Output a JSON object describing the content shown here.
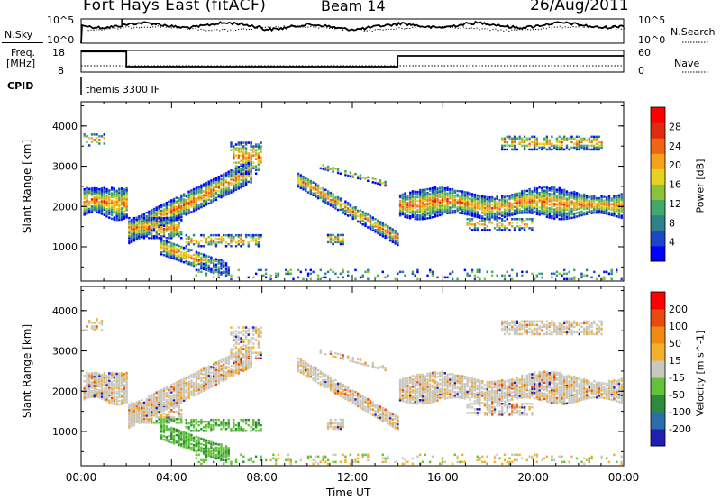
{
  "header": {
    "station": "Fort Hays East (fitACF)",
    "beam": "Beam 14",
    "date": "26/Aug/2011"
  },
  "noise_panel": {
    "left_label": "N.Sky",
    "left_ticks": [
      "10^5",
      "10^0"
    ],
    "right_ticks": [
      "10^5",
      "10^0"
    ],
    "right_label": "N.Search"
  },
  "freq_panel": {
    "left_label_line1": "Freq.",
    "left_label_line2": "[MHz]",
    "left_ticks": [
      "18",
      "8"
    ],
    "right_ticks": [
      "60",
      "0"
    ],
    "right_label": "Nave",
    "cpid_label": "CPID",
    "cpid_value": "themis 3300 IF"
  },
  "power_panel": {
    "ylabel": "Slant Range [km]",
    "yticks": [
      "4000",
      "3000",
      "2000",
      "1000"
    ],
    "colorbar_label": "Power [dB]",
    "colorbar_ticks": [
      "28",
      "24",
      "20",
      "16",
      "12",
      "8",
      "4"
    ],
    "colors": [
      "#0000ff",
      "#1e46c8",
      "#2f7f8f",
      "#3fa86a",
      "#8ac23a",
      "#e6d21e",
      "#f7a11a",
      "#f06414",
      "#e02a10",
      "#ff0000"
    ]
  },
  "velocity_panel": {
    "ylabel": "Slant Range [km]",
    "yticks": [
      "4000",
      "3000",
      "2000",
      "1000"
    ],
    "colorbar_label": "Velocity [m s^-1]",
    "colorbar_ticks": [
      "200",
      "100",
      "50",
      "15",
      "-15",
      "-50",
      "-100",
      "-200"
    ],
    "colors": [
      "#2020b0",
      "#2a6ea8",
      "#2d8c3c",
      "#63c23a",
      "#c8c8c0",
      "#f2b02a",
      "#f08a10",
      "#e84a10",
      "#ff0000"
    ]
  },
  "x_axis": {
    "ticks": [
      "00:00",
      "04:00",
      "08:00",
      "12:00",
      "16:00",
      "20:00",
      "00:00"
    ],
    "label": "Time UT"
  },
  "chart_data": [
    {
      "type": "line",
      "xlabel": "",
      "ylabel": "N.Sky",
      "x_range_hours": [
        0,
        24
      ],
      "note_scale": "log",
      "ylim_log10": [
        0,
        5
      ]
    },
    {
      "type": "line",
      "ylabel": "Freq. [MHz]",
      "ylim": [
        8,
        18
      ],
      "series": [
        {
          "name": "Freq.",
          "x": [
            0,
            2,
            2,
            14,
            14,
            24
          ],
          "values": [
            17.5,
            17.5,
            10.5,
            10.5,
            15.5,
            15.5
          ]
        }
      ],
      "right_axis": {
        "label": "Nave",
        "ylim": [
          0,
          60
        ]
      }
    },
    {
      "type": "heatmap",
      "title": "",
      "xlabel": "Time UT",
      "ylabel": "Slant Range [km]",
      "x_range_hours": [
        0,
        24
      ],
      "ylim": [
        150,
        4600
      ],
      "colorbar": {
        "label": "Power [dB]",
        "ticks": [
          28,
          24,
          20,
          16,
          12,
          8,
          4
        ]
      }
    },
    {
      "type": "heatmap",
      "xlabel": "Time UT",
      "ylabel": "Slant Range [km]",
      "x_range_hours": [
        0,
        24
      ],
      "ylim": [
        150,
        4600
      ],
      "colorbar": {
        "label": "Velocity [m s^-1]",
        "ticks": [
          200,
          100,
          50,
          15,
          -15,
          -50,
          -100,
          -200
        ]
      }
    }
  ]
}
